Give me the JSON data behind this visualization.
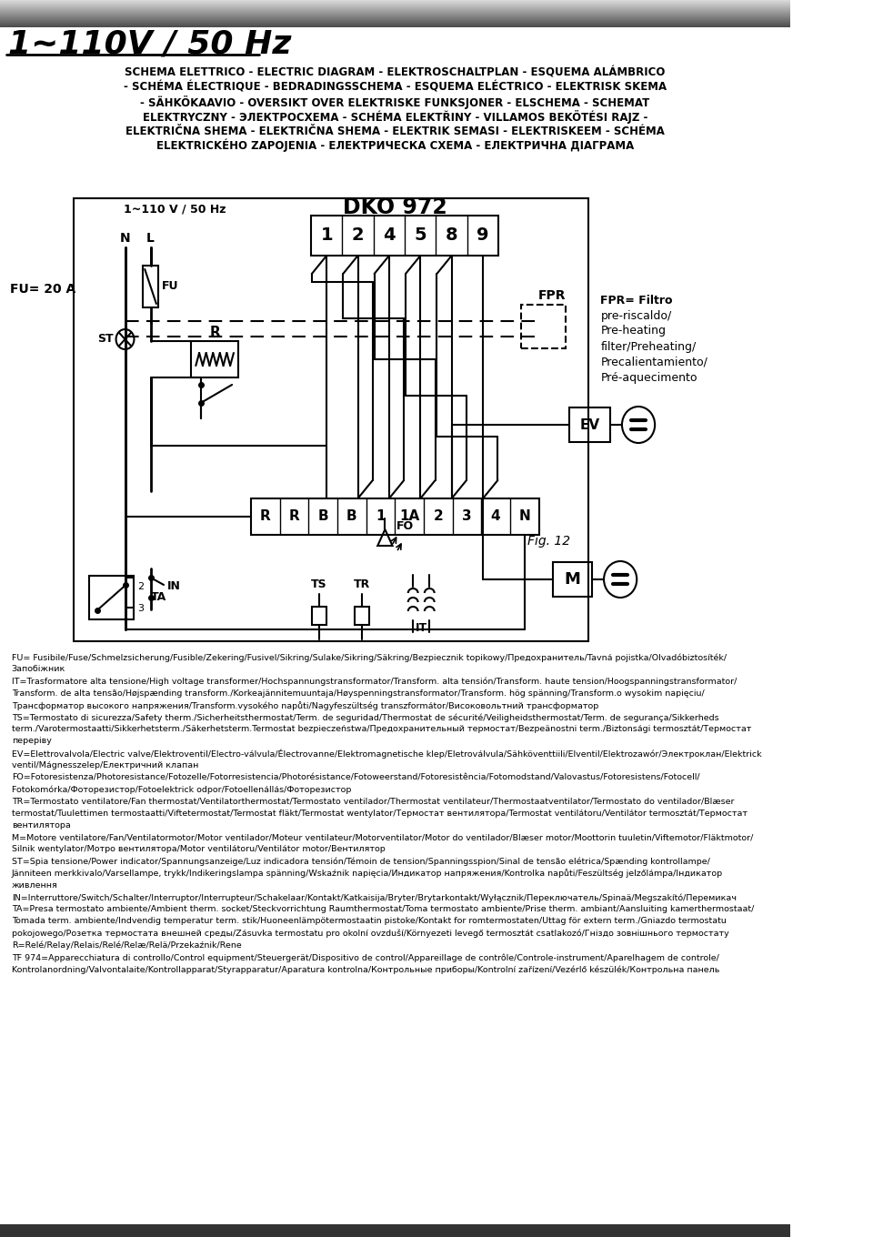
{
  "title_voltage": "1~110V / 50 Hz",
  "subtitle_lines": [
    "SCHEMA ELETTRICO - ELECTRIC DIAGRAM - ELEKTROSCHALTPLAN - ESQUEMA ALÁMBRICO",
    "- SCHÉMA ÉLECTRIQUE - BEDRADINGSSCHEMA - ESQUEMA ELÉCTRICO - ELEKTRISK SKEMA",
    "- SÄHKÖKAAVIO - OVERSIKT OVER ELEKTRISKE FUNKSJONER - ELSCHEMA - SCHEMAT",
    "ELEKTRYCZNY - ЭЛЕКТРОСХЕМА - SCHÉMA ELEKTŘINY - VILLAMOS BEKÖTÉSI RAJZ -",
    "ELEKTRIČNA SHEMA - ELEKTRIČNA SHEMA - ELEKTRIK SEMASI - ELEKTRISKEEM - SCHÉMA",
    "ELEKTRICKÉHO ZAPOJENIA - ЕЛЕКТРИЧЕСКА СХЕМА - ЕЛЕКТРИЧНА ДІАГРАМА"
  ],
  "legend_lines": [
    "FU= Fusibile/Fuse/Schmelzsicherung/Fusible/Zekering/Fusivel/Sikring/Sulake/Sikring/Säkring/Bezpiecznik topikowy/Предохранитель/Tavná pojistka/Olvadóbiztosíték/",
    "Запобіжник",
    "IT=Trasformatore alta tensione/High voltage transformer/Hochspannungstransformator/Transform. alta tensión/Transform. haute tension/Hoogspanningstransformator/",
    "Transform. de alta tensão/Højspænding transform./Korkeajännitemuuntaja/Høyspenningstransformator/Transform. hög spänning/Transform.o wysokim napięciu/",
    "Трансформатор высокого напряжения/Transform.vysokého napůti/Nagyfeszültség transzformátor/Високовольтний трансформатор",
    "TS=Termostato di sicurezza/Safety therm./Sicherheitsthermostat/Term. de seguridad/Thermostat de sécurité/Veiligheidsthermostat/Term. de segurança/Sikkerheds",
    "term./Varotermostaatti/Sikkerhetsterm./Säkerhetsterm.Termostat bezpieczeństwa/Предохранительный термостат/Bezpeänostni term./Biztonsági termosztát/Термостат",
    "переріву",
    "EV=Elettrovalvola/Electric valve/Elektroventil/Electro-válvula/Électrovanne/Elektromagnetische klep/Eletroválvula/Sähköventtiili/Elventil/Elektrozawór/Электроклан/Elektrick",
    "ventil/Mágnesszelep/Електричний клапан",
    "FO=Fotoresistenza/Photoresistance/Fotozelle/Fotorresistencia/Photorésistance/Fotoweerstand/Fotoresistência/Fotomodstand/Valovastus/Fotoresistens/Fotocell/",
    "Fotokomórka/Фоторезистор/Fotoelektrick odpor/Fotoellenállás/Фоторезистор",
    "TR=Termostato ventilatore/Fan thermostat/Ventilatorthermostat/Termostato ventilador/Thermostat ventilateur/Thermostaatventilator/Termostato do ventilador/Blæser",
    "termostat/Tuulettimen termostaatti/Viftetermostat/Termostat fläkt/Termostat wentylator/Термостат вентилятора/Termostat ventilátoru/Ventilátor termosztát/Термостат",
    "вентилятора",
    "M=Motore ventilatore/Fan/Ventilatormotor/Motor ventilador/Moteur ventilateur/Motorventilator/Motor do ventilador/Blæser motor/Moottorin tuuletin/Viftemotor/Fläktmotor/",
    "Silnik wentylator/Мотро вентилятора/Motor ventilátoru/Ventilátor motor/Вентилятор",
    "ST=Spia tensione/Power indicator/Spannungsanzeige/Luz indicadora tensión/Témoin de tension/Spanningsspion/Sinal de tensão elétrica/Spænding kontrollampe/",
    "Jänniteen merkkivalo/Varsellampe, trykk/Indikeringslampa spänning/Wskaźnik napięcia/Индикатор напряжения/Kontrolka napůti/Feszültség jelzőlámpa/Індикатор",
    "живлення",
    "IN=Interruttore/Switch/Schalter/Interruptor/Interrupteur/Schakelaar/Kontakt/Katkaisija/Bryter/Brytarkontakt/Wyłącznik/Переключатель/Spinaä/Megszakító/Перемикач",
    "TA=Presa termostato ambiente/Ambient therm. socket/Steckvorrichtung Raumthermostat/Toma termostato ambiente/Prise therm. ambiant/Aansluiting kamerthermostaat/",
    "Tomada term. ambiente/Indvendig temperatur term. stik/Huoneenlämpötermostaatin pistoke/Kontakt for romtermostaten/Uttag för extern term./Gniazdo termostatu",
    "pokojowego/Розетка термостата внешней среды/Zásuvka termostatu pro okolní ovzduší/Környezeti levegő termosztát csatlakozó/Гніздо зовнішнього термостату",
    "R=Relé/Relay/Relais/Relé/Relæ/Relä/Przekaźnik/Rene",
    "TF 974=Apparecchiatura di controllo/Control equipment/Steuergerät/Dispositivo de control/Appareillage de contrôle/Controle-instrument/Aparelhagem de controle/",
    "Kontrolanordning/Valvontalaite/Kontrollapparat/Styrapparatur/Aparatura kontrolna/Контрольные приборы/Kontrolní zařízení/Vezérlő készülék/Контрольна панель"
  ],
  "fig_label": "Fig. 12",
  "voltage_label": "1~110 V / 50 Hz",
  "model_label": "DKO 972",
  "fpr_label": "FPR",
  "fu_label": "FU= 20 A",
  "fpr_desc_lines": [
    "FPR= Filtro",
    "pre-riscaldo/",
    "Pre-heating",
    "filter/Preheating/",
    "Precalientamiento/",
    "Pré-aquecimento"
  ],
  "terminal_top": [
    "1",
    "2",
    "4",
    "5",
    "8",
    "9"
  ],
  "terminal_bottom": [
    "R",
    "R",
    "B",
    "B",
    "1",
    "1A",
    "2",
    "3",
    "4",
    "N"
  ],
  "bg_color": "#ffffff",
  "line_color": "#000000",
  "text_color": "#000000"
}
